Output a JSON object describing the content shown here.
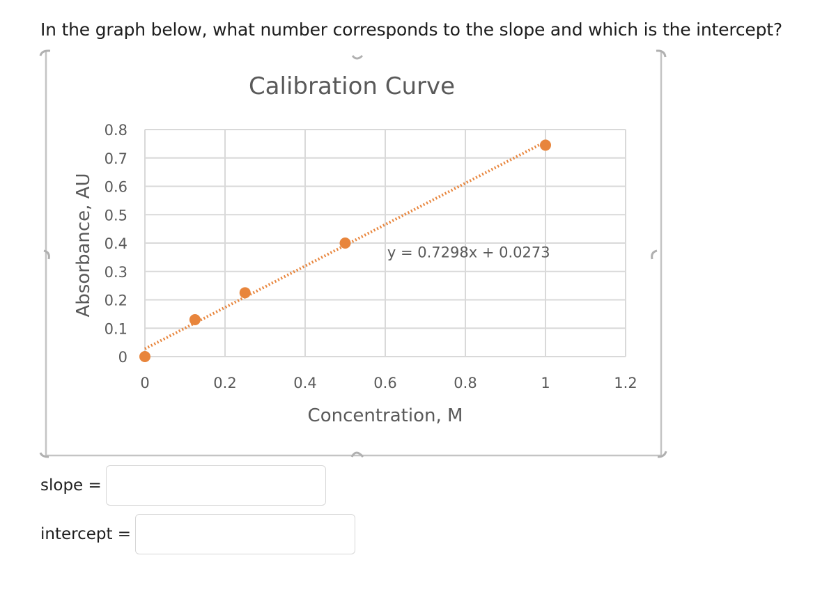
{
  "question": {
    "text": "In the graph below, what number corresponds to the slope and which is the intercept?"
  },
  "chart_data": {
    "type": "scatter",
    "title": "Calibration Curve",
    "xlabel": "Concentration, M",
    "ylabel": "Absorbance, AU",
    "xlim": [
      0,
      1.2
    ],
    "ylim": [
      0,
      0.8
    ],
    "x_ticks": [
      0,
      0.2,
      0.4,
      0.6,
      0.8,
      1,
      1.2
    ],
    "x_tick_labels": [
      "0",
      "0.2",
      "0.4",
      "0.6",
      "0.8",
      "1",
      "1.2"
    ],
    "y_ticks": [
      0,
      0.1,
      0.2,
      0.3,
      0.4,
      0.5,
      0.6,
      0.7,
      0.8
    ],
    "y_tick_labels": [
      "0",
      "0.1",
      "0.2",
      "0.3",
      "0.4",
      "0.5",
      "0.6",
      "0.7",
      "0.8"
    ],
    "grid": true,
    "legend": "none",
    "series": [
      {
        "x": [
          0,
          0.125,
          0.25,
          0.5,
          1.0
        ],
        "y": [
          0,
          0.13,
          0.225,
          0.4,
          0.745
        ],
        "color": "#e8853c"
      }
    ],
    "trendline": {
      "slope": 0.7298,
      "intercept": 0.0273,
      "x_range": [
        0,
        1.0
      ],
      "style": "dotted",
      "color": "#e8853c"
    },
    "annotations": [
      {
        "text": "y = 0.7298x + 0.0273",
        "x": 0.605,
        "y": 0.35
      }
    ]
  },
  "answers": {
    "slope_label": "slope =",
    "intercept_label": "intercept =",
    "slope_value": "",
    "intercept_value": ""
  }
}
